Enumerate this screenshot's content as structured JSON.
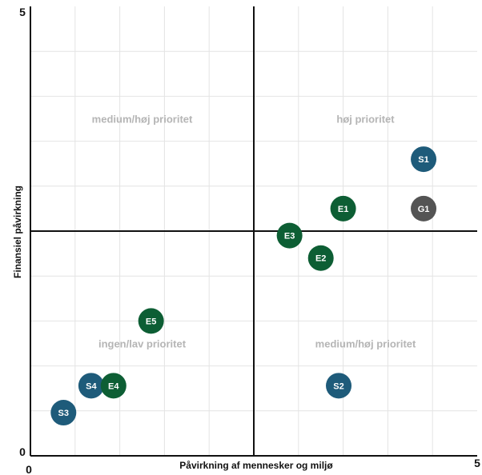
{
  "chart_data": {
    "type": "scatter",
    "xlabel": "Påvirkning af mennesker og miljø",
    "ylabel": "Finansiel påvirkning",
    "xlim": [
      0,
      5
    ],
    "ylim": [
      0,
      5
    ],
    "x_ticks": [
      "0",
      "5"
    ],
    "y_ticks": [
      "0",
      "5"
    ],
    "grid": true,
    "quadrant_labels": [
      {
        "text": "medium/høj prioritet",
        "x": 1.25,
        "y": 3.75
      },
      {
        "text": "høj prioritet",
        "x": 3.75,
        "y": 3.75
      },
      {
        "text": "ingen/lav prioritet",
        "x": 1.25,
        "y": 1.25
      },
      {
        "text": "medium/høj prioritet",
        "x": 3.75,
        "y": 1.25
      }
    ],
    "colors": {
      "S": "#1e5b7a",
      "E": "#0d5e34",
      "G": "#545454"
    },
    "points": [
      {
        "label": "S1",
        "group": "S",
        "x": 4.4,
        "y": 3.3
      },
      {
        "label": "G1",
        "group": "G",
        "x": 4.4,
        "y": 2.75
      },
      {
        "label": "E1",
        "group": "E",
        "x": 3.5,
        "y": 2.75
      },
      {
        "label": "E3",
        "group": "E",
        "x": 2.9,
        "y": 2.45
      },
      {
        "label": "E2",
        "group": "E",
        "x": 3.25,
        "y": 2.2
      },
      {
        "label": "E5",
        "group": "E",
        "x": 1.35,
        "y": 1.5
      },
      {
        "label": "S2",
        "group": "S",
        "x": 3.45,
        "y": 0.78
      },
      {
        "label": "S4",
        "group": "S",
        "x": 0.68,
        "y": 0.78
      },
      {
        "label": "E4",
        "group": "E",
        "x": 0.93,
        "y": 0.78
      },
      {
        "label": "S3",
        "group": "S",
        "x": 0.37,
        "y": 0.48
      }
    ]
  }
}
